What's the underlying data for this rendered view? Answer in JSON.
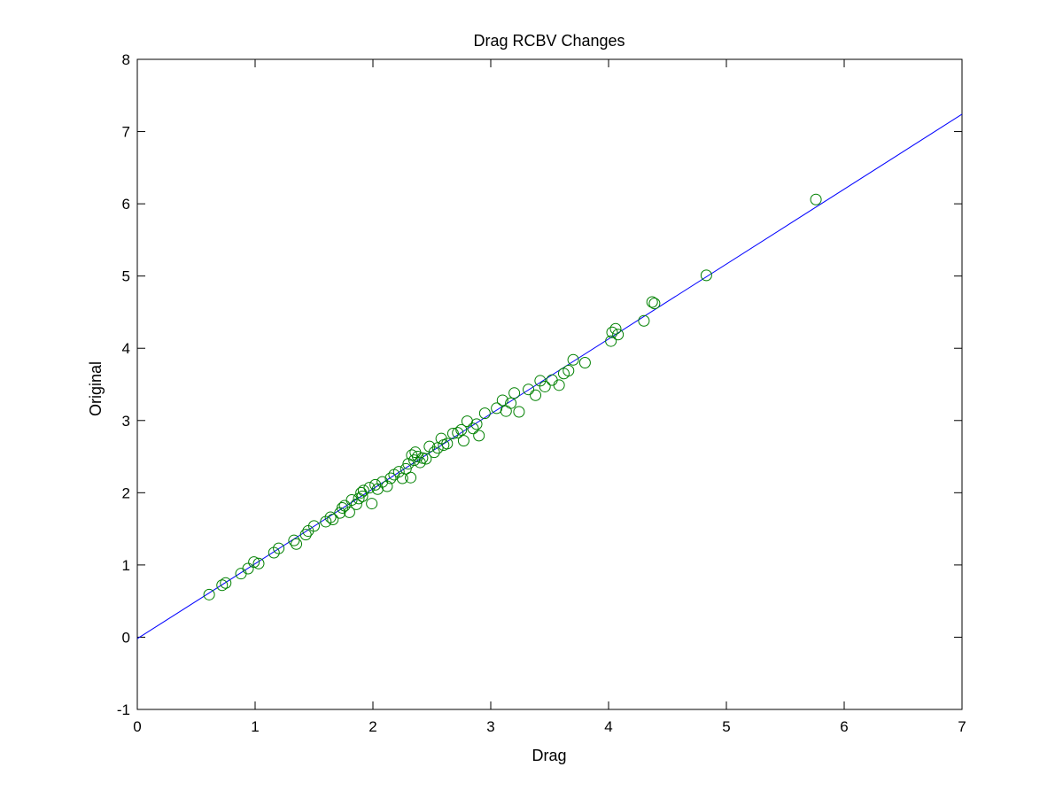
{
  "chart_data": {
    "type": "scatter",
    "title": "Drag RCBV Changes",
    "xlabel": "Drag",
    "ylabel": "Original",
    "xlim": [
      0,
      7
    ],
    "ylim": [
      -1,
      8
    ],
    "xticks": [
      "0",
      "1",
      "2",
      "3",
      "4",
      "5",
      "6",
      "7"
    ],
    "yticks": [
      "-1",
      "0",
      "1",
      "2",
      "3",
      "4",
      "5",
      "6",
      "7",
      "8"
    ],
    "grid": false,
    "colors": {
      "points": "#008000",
      "fit_line": "#0000ff",
      "axes": "#000000"
    },
    "fit_line": {
      "x": [
        0,
        7
      ],
      "y": [
        -0.02,
        7.24
      ]
    },
    "points": {
      "x": [
        0.61,
        0.72,
        0.75,
        0.88,
        0.94,
        0.99,
        1.03,
        1.16,
        1.2,
        1.33,
        1.35,
        1.43,
        1.45,
        1.5,
        1.6,
        1.64,
        1.66,
        1.72,
        1.74,
        1.76,
        1.8,
        1.82,
        1.86,
        1.88,
        1.9,
        1.91,
        1.92,
        1.97,
        1.99,
        2.02,
        2.04,
        2.08,
        2.12,
        2.15,
        2.18,
        2.22,
        2.25,
        2.28,
        2.3,
        2.32,
        2.33,
        2.35,
        2.36,
        2.38,
        2.4,
        2.42,
        2.45,
        2.48,
        2.52,
        2.55,
        2.58,
        2.6,
        2.63,
        2.68,
        2.72,
        2.75,
        2.77,
        2.8,
        2.85,
        2.88,
        2.9,
        2.95,
        3.05,
        3.1,
        3.13,
        3.17,
        3.2,
        3.24,
        3.32,
        3.38,
        3.42,
        3.46,
        3.52,
        3.58,
        3.62,
        3.66,
        3.7,
        3.8,
        4.02,
        4.03,
        4.06,
        4.08,
        4.3,
        4.37,
        4.39,
        4.83,
        5.76
      ],
      "y": [
        0.59,
        0.72,
        0.75,
        0.88,
        0.95,
        1.04,
        1.02,
        1.17,
        1.23,
        1.34,
        1.29,
        1.42,
        1.47,
        1.54,
        1.6,
        1.66,
        1.63,
        1.72,
        1.79,
        1.82,
        1.73,
        1.9,
        1.84,
        1.92,
        2.0,
        1.95,
        2.03,
        2.07,
        1.85,
        2.11,
        2.05,
        2.15,
        2.09,
        2.2,
        2.25,
        2.29,
        2.2,
        2.33,
        2.4,
        2.21,
        2.52,
        2.45,
        2.56,
        2.5,
        2.42,
        2.48,
        2.47,
        2.64,
        2.56,
        2.62,
        2.75,
        2.66,
        2.68,
        2.82,
        2.83,
        2.87,
        2.72,
        2.99,
        2.89,
        2.95,
        2.79,
        3.1,
        3.17,
        3.28,
        3.13,
        3.24,
        3.38,
        3.12,
        3.43,
        3.35,
        3.55,
        3.47,
        3.56,
        3.49,
        3.65,
        3.69,
        3.84,
        3.8,
        4.1,
        4.22,
        4.27,
        4.19,
        4.38,
        4.64,
        4.62,
        5.01,
        6.06
      ]
    }
  }
}
